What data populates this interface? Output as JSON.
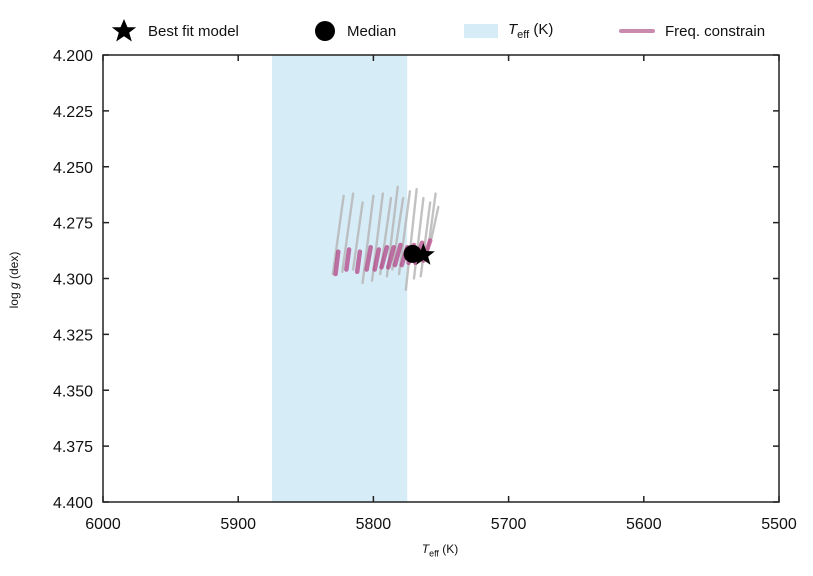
{
  "chart_data": {
    "type": "scatter",
    "xlabel_main": "T",
    "xlabel_sub": "eff",
    "xlabel_unit": " (K)",
    "ylabel_main": "log ",
    "ylabel_g": "g",
    "ylabel_unit": " (dex)",
    "xlim": [
      6000,
      5500
    ],
    "ylim": [
      4.4,
      4.2
    ],
    "x_ticks": [
      "6000",
      "5900",
      "5800",
      "5700",
      "5600",
      "5500"
    ],
    "y_ticks": [
      "4.200",
      "4.225",
      "4.250",
      "4.275",
      "4.300",
      "4.325",
      "4.350",
      "4.375",
      "4.400"
    ],
    "teff_band": [
      5875,
      5775
    ],
    "best_fit_model": {
      "teff": 5763,
      "logg": 4.2895
    },
    "median": {
      "teff": 5771,
      "logg": 4.289
    },
    "gray_tracks": [
      {
        "x": [
          5830,
          5822
        ],
        "y": [
          4.298,
          4.263
        ]
      },
      {
        "x": [
          5823,
          5815
        ],
        "y": [
          4.297,
          4.262
        ]
      },
      {
        "x": [
          5815,
          5808
        ],
        "y": [
          4.296,
          4.266
        ]
      },
      {
        "x": [
          5808,
          5800
        ],
        "y": [
          4.302,
          4.263
        ]
      },
      {
        "x": [
          5801,
          5793
        ],
        "y": [
          4.301,
          4.262
        ]
      },
      {
        "x": [
          5795,
          5787
        ],
        "y": [
          4.298,
          4.264
        ]
      },
      {
        "x": [
          5790,
          5782
        ],
        "y": [
          4.299,
          4.259
        ]
      },
      {
        "x": [
          5786,
          5778
        ],
        "y": [
          4.296,
          4.264
        ]
      },
      {
        "x": [
          5781,
          5773
        ],
        "y": [
          4.298,
          4.261
        ]
      },
      {
        "x": [
          5776,
          5768
        ],
        "y": [
          4.305,
          4.26
        ]
      },
      {
        "x": [
          5770,
          5763
        ],
        "y": [
          4.3,
          4.264
        ]
      },
      {
        "x": [
          5765,
          5758
        ],
        "y": [
          4.299,
          4.266
        ]
      },
      {
        "x": [
          5760,
          5754
        ],
        "y": [
          4.289,
          4.262
        ]
      },
      {
        "x": [
          5757,
          5752
        ],
        "y": [
          4.282,
          4.268
        ]
      }
    ],
    "freq_tracks": [
      {
        "x": [
          5828,
          5826
        ],
        "y": [
          4.298,
          4.288
        ]
      },
      {
        "x": [
          5820,
          5818
        ],
        "y": [
          4.296,
          4.287
        ]
      },
      {
        "x": [
          5812,
          5810
        ],
        "y": [
          4.297,
          4.288
        ]
      },
      {
        "x": [
          5805,
          5802
        ],
        "y": [
          4.296,
          4.286
        ]
      },
      {
        "x": [
          5799,
          5796
        ],
        "y": [
          4.296,
          4.287
        ]
      },
      {
        "x": [
          5794,
          5790
        ],
        "y": [
          4.295,
          4.286
        ]
      },
      {
        "x": [
          5789,
          5785
        ],
        "y": [
          4.295,
          4.286
        ]
      },
      {
        "x": [
          5784,
          5780
        ],
        "y": [
          4.294,
          4.285
        ]
      },
      {
        "x": [
          5779,
          5775
        ],
        "y": [
          4.294,
          4.286
        ]
      },
      {
        "x": [
          5774,
          5770
        ],
        "y": [
          4.293,
          4.285
        ]
      },
      {
        "x": [
          5769,
          5764
        ],
        "y": [
          4.293,
          4.284
        ]
      },
      {
        "x": [
          5763,
          5758
        ],
        "y": [
          4.292,
          4.283
        ]
      }
    ],
    "legend": [
      {
        "label": "Best fit model",
        "symbol": "star",
        "color": "#000000"
      },
      {
        "label": "Median",
        "symbol": "circle",
        "color": "#000000"
      },
      {
        "label_main": "T",
        "label_sub": "eff",
        "label_unit": " (K)",
        "symbol": "patch",
        "color": "#d6ecf7"
      },
      {
        "label": "Freq. constrain",
        "symbol": "line",
        "color": "#c98aae"
      }
    ],
    "colors": {
      "band": "#d6ecf7",
      "gray_track": "#b8b8b8",
      "freq_track": "#b24686",
      "marker": "#000000",
      "axis": "#222222"
    },
    "grid": false,
    "legend_position": "top"
  }
}
